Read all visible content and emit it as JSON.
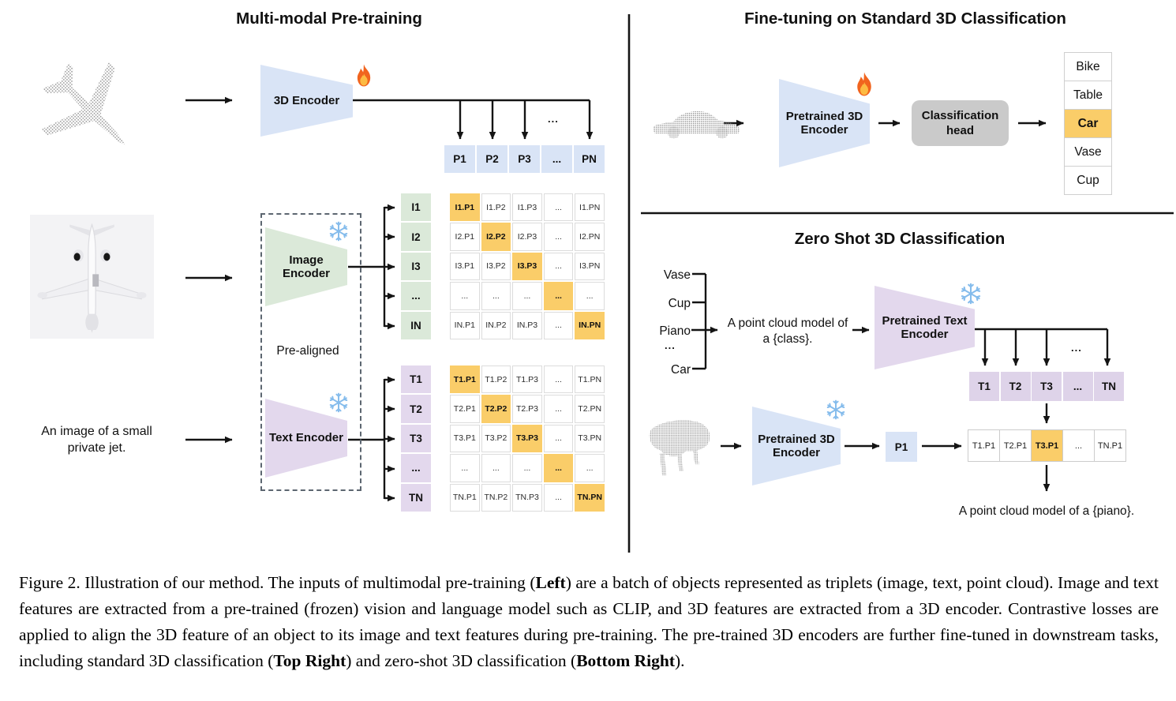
{
  "icons": {
    "trainable": "fire-icon",
    "frozen": "snowflake-icon"
  },
  "left": {
    "title": "Multi-modal Pre-training",
    "encoder3d": "3D Encoder",
    "image_encoder": "Image Encoder",
    "text_encoder": "Text Encoder",
    "pre_aligned": "Pre-aligned",
    "input_text": "An image of a small private jet.",
    "ellipsis": "...",
    "p_row": [
      "P1",
      "P2",
      "P3",
      "...",
      "PN"
    ],
    "i_labels": [
      "I1",
      "I2",
      "I3",
      "...",
      "IN"
    ],
    "t_labels": [
      "T1",
      "T2",
      "T3",
      "...",
      "TN"
    ],
    "i_matrix": [
      [
        "I1.P1",
        "I1.P2",
        "I1.P3",
        "...",
        "I1.PN"
      ],
      [
        "I2.P1",
        "I2.P2",
        "I2.P3",
        "...",
        "I2.PN"
      ],
      [
        "I3.P1",
        "I3.P2",
        "I3.P3",
        "...",
        "I3.PN"
      ],
      [
        "...",
        "...",
        "...",
        "...",
        "..."
      ],
      [
        "IN.P1",
        "IN.P2",
        "IN.P3",
        "...",
        "IN.PN"
      ]
    ],
    "t_matrix": [
      [
        "T1.P1",
        "T1.P2",
        "T1.P3",
        "...",
        "T1.PN"
      ],
      [
        "T2.P1",
        "T2.P2",
        "T2.P3",
        "...",
        "T2.PN"
      ],
      [
        "T3.P1",
        "T3.P2",
        "T3.P3",
        "...",
        "T3.PN"
      ],
      [
        "...",
        "...",
        "...",
        "...",
        "..."
      ],
      [
        "TN.P1",
        "TN.P2",
        "TN.P3",
        "...",
        "TN.PN"
      ]
    ]
  },
  "top_right": {
    "title": "Fine-tuning on Standard 3D Classification",
    "encoder": "Pretrained 3D Encoder",
    "head": "Classification head",
    "classes": [
      "Bike",
      "Table",
      "Car",
      "Vase",
      "Cup"
    ],
    "highlighted_class": "Car"
  },
  "bottom_right": {
    "title": "Zero Shot 3D Classification",
    "candidates": [
      "Vase",
      "Cup",
      "Piano",
      "...",
      "Car"
    ],
    "prompt": [
      "A point cloud model of",
      "a {class}."
    ],
    "text_encoder": "Pretrained Text Encoder",
    "encoder3d": "Pretrained 3D Encoder",
    "p_cell": "P1",
    "t_row": [
      "T1",
      "T2",
      "T3",
      "...",
      "TN"
    ],
    "result_row": [
      "T1.P1",
      "T2.P1",
      "T3.P1",
      "...",
      "TN.P1"
    ],
    "highlighted_result": "T3.P1",
    "ellipsis": "...",
    "output_text": "A point cloud model of a {piano}."
  },
  "caption": {
    "segments": [
      {
        "text": "Figure 2. Illustration of our method. The inputs of multimodal pre-training (",
        "bold": false
      },
      {
        "text": "Left",
        "bold": true
      },
      {
        "text": ") are a batch of objects represented as triplets (image, text, point cloud). Image and text features are extracted from a pre-trained (frozen) vision and language model such as CLIP, and 3D features are extracted from a 3D encoder. Contrastive losses are applied to align the 3D feature of an object to its image and text features during pre-training. The pre-trained 3D encoders are further fine-tuned in downstream tasks, including standard 3D classification (",
        "bold": false
      },
      {
        "text": "Top Right",
        "bold": true
      },
      {
        "text": ") and zero-shot 3D classification (",
        "bold": false
      },
      {
        "text": "Bottom Right",
        "bold": true
      },
      {
        "text": ").",
        "bold": false
      }
    ]
  },
  "colors": {
    "blue": "#D9E4F6",
    "green": "#DBE9D9",
    "purple": "#E3D8ED",
    "purple2": "#DED3E9",
    "highlight": "#FACD69",
    "headgray": "#CACACA",
    "line": "#141414",
    "snow": "#85BCEC"
  }
}
